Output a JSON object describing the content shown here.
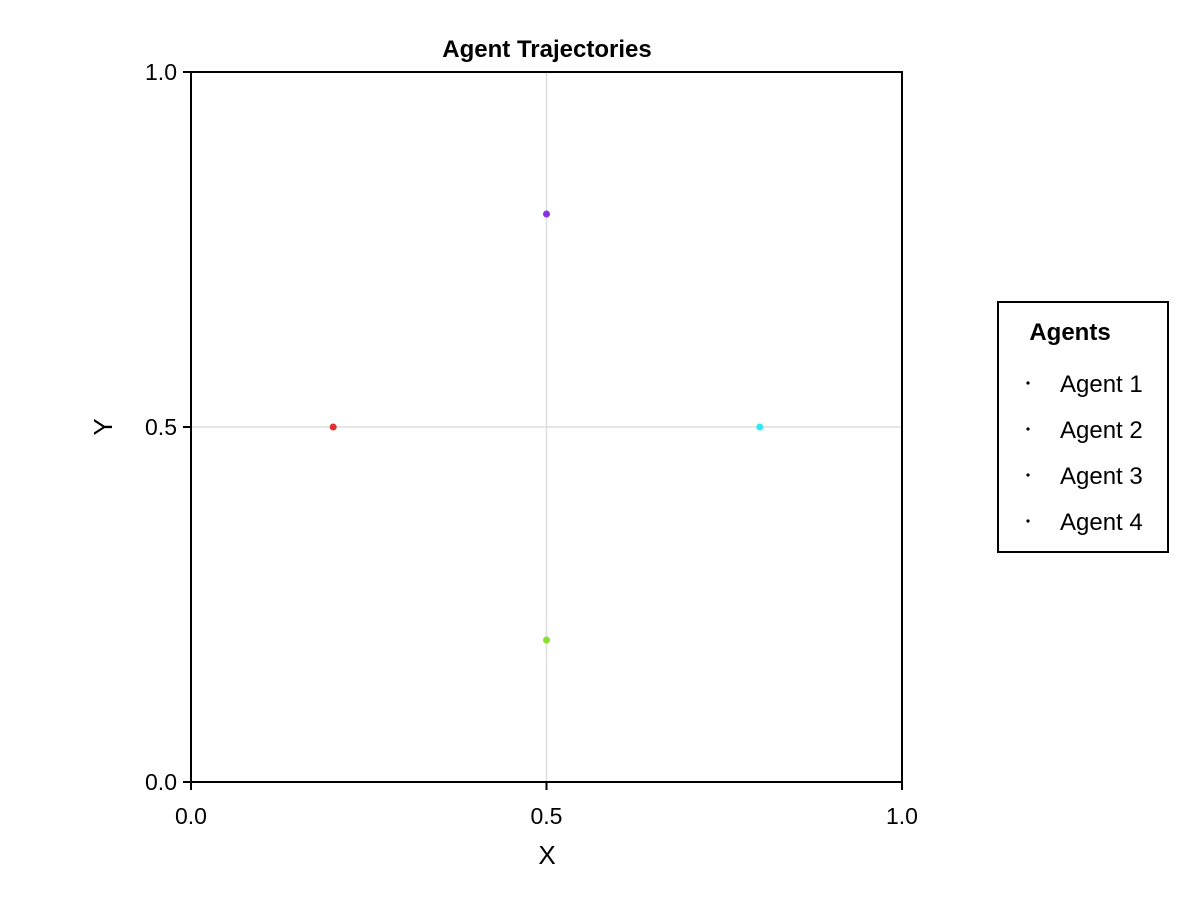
{
  "chart_data": {
    "type": "scatter",
    "title": "Agent Trajectories",
    "xlabel": "X",
    "ylabel": "Y",
    "xlim": [
      0.0,
      1.0
    ],
    "ylim": [
      0.0,
      1.0
    ],
    "xticks": [
      "0.0",
      "0.5",
      "1.0"
    ],
    "yticks": [
      "0.0",
      "0.5",
      "1.0"
    ],
    "grid": true,
    "legend": {
      "title": "Agents",
      "placement": "right",
      "marker_color": "#000000"
    },
    "series": [
      {
        "name": "Agent 1",
        "color": "#e03030",
        "points": [
          {
            "x": 0.2,
            "y": 0.5
          }
        ]
      },
      {
        "name": "Agent 2",
        "color": "#8ae030",
        "points": [
          {
            "x": 0.5,
            "y": 0.2
          }
        ]
      },
      {
        "name": "Agent 3",
        "color": "#30e8f0",
        "points": [
          {
            "x": 0.8,
            "y": 0.5
          }
        ]
      },
      {
        "name": "Agent 4",
        "color": "#8a30e8",
        "points": [
          {
            "x": 0.5,
            "y": 0.8
          }
        ]
      }
    ]
  }
}
